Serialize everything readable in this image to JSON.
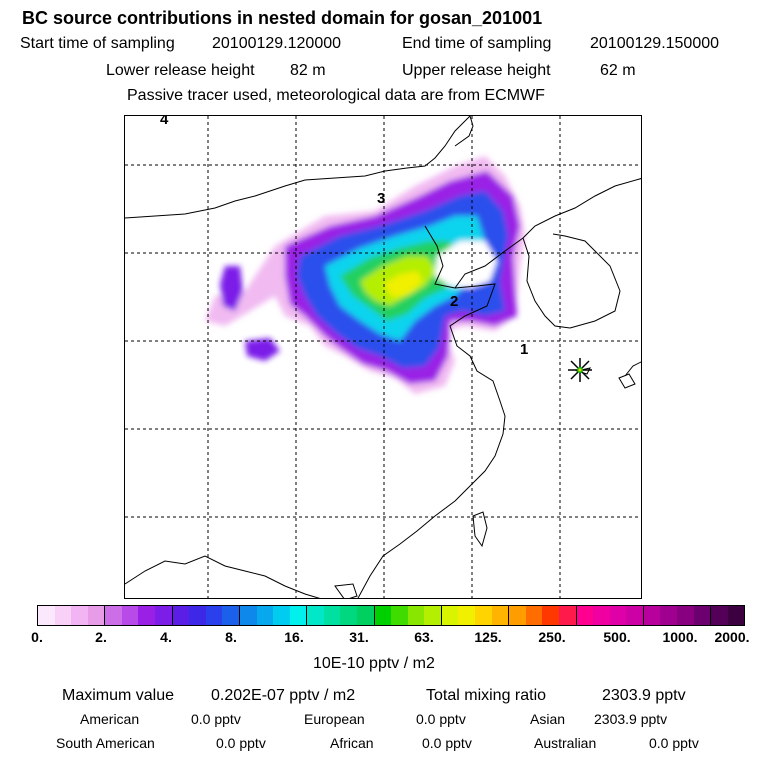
{
  "header": {
    "title": "BC  source contributions in nested domain for gosan_201001",
    "start_label": "Start time of sampling",
    "start_value": "20100129.120000",
    "end_label": "End time of sampling",
    "end_value": "20100129.150000",
    "lower_label": "Lower release height",
    "lower_value": "82 m",
    "upper_label": "Upper release height",
    "upper_value": "62 m",
    "note": "Passive tracer used, meteorological data are from ECMWF"
  },
  "map": {
    "markers": [
      "4",
      "3",
      "2",
      "1"
    ],
    "receptor": "star-icon",
    "coast_color": "#000000",
    "grid_color": "#000000"
  },
  "colorbar": {
    "ticks": [
      "0.",
      "2.",
      "4.",
      "8.",
      "16.",
      "31.",
      "63.",
      "125.",
      "250.",
      "500.",
      "1000.",
      "2000."
    ],
    "colors": [
      "#fce8fc",
      "#f8d0f8",
      "#f2b4f2",
      "#e89ce8",
      "#cc6ee8",
      "#b84ae8",
      "#9a20e6",
      "#7c1ee8",
      "#5a1ee6",
      "#3c28e6",
      "#2a40ec",
      "#1a60ea",
      "#0e88ea",
      "#08a8ee",
      "#00ccf0",
      "#00f0ee",
      "#00e8c8",
      "#00e0a0",
      "#00d880",
      "#00d060",
      "#00d000",
      "#40dc00",
      "#88e600",
      "#b4ee00",
      "#d8f400",
      "#f0f000",
      "#ffd400",
      "#ffb400",
      "#ff9c00",
      "#ff6c00",
      "#ff3800",
      "#ff1a4c",
      "#ff0090",
      "#f000a0",
      "#e000a8",
      "#cc00a4",
      "#b8009c",
      "#a00090",
      "#880080",
      "#6c006e",
      "#540058",
      "#3c0040"
    ],
    "unit": "10E-10 pptv / m2"
  },
  "stats": {
    "max_label": "Maximum value",
    "max_value": "0.202E-07 pptv / m2",
    "total_label": "Total mixing ratio",
    "total_value": "2303.9 pptv",
    "rows": [
      [
        {
          "name": "American",
          "value": "0.0 pptv"
        },
        {
          "name": "European",
          "value": "0.0 pptv"
        },
        {
          "name": "Asian",
          "value": "2303.9 pptv"
        }
      ],
      [
        {
          "name": "South American",
          "value": "0.0 pptv"
        },
        {
          "name": "African",
          "value": "0.0 pptv"
        },
        {
          "name": "Australian",
          "value": "0.0 pptv"
        }
      ]
    ]
  }
}
